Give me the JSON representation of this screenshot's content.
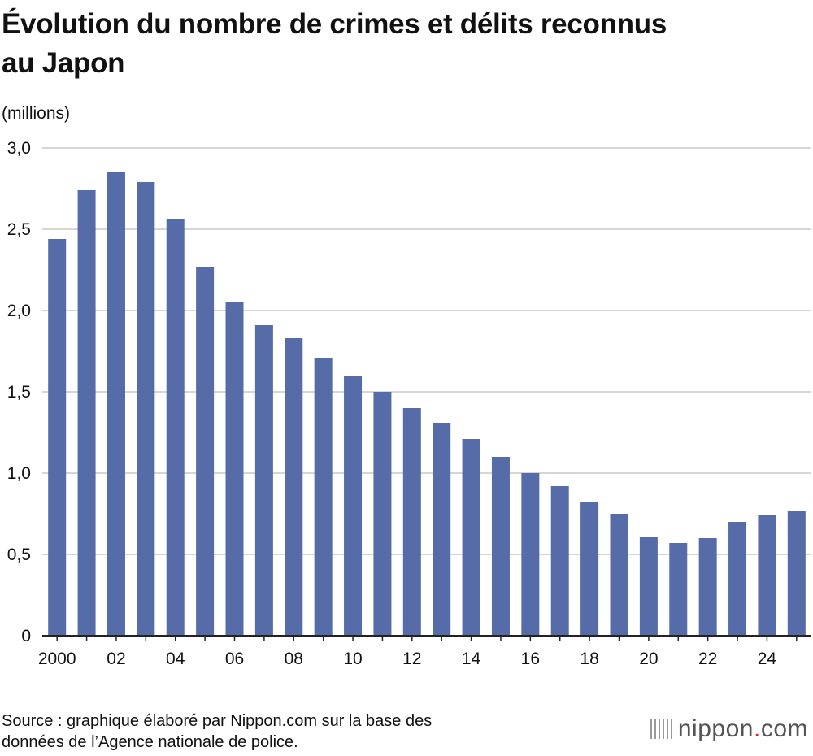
{
  "title_lines": [
    "Évolution du nombre de crimes et délits reconnus",
    "au Japon"
  ],
  "unit_label": "(millions)",
  "source_lines": [
    "Source : graphique élaboré par Nippon.com sur la base des",
    "données de l’Agence nationale de police."
  ],
  "logo": {
    "name": "nippon",
    "dot": ".",
    "suffix": "com"
  },
  "colors": {
    "bar": "#566ca8",
    "grid": "#c8c8c8",
    "axis": "#222222"
  },
  "chart_data": {
    "type": "bar",
    "title": "Évolution du nombre de crimes et délits reconnus au Japon",
    "ylabel": "(millions)",
    "xlabel": "",
    "categories": [
      "2000",
      "2001",
      "2002",
      "2003",
      "2004",
      "2005",
      "2006",
      "2007",
      "2008",
      "2009",
      "2010",
      "2011",
      "2012",
      "2013",
      "2014",
      "2015",
      "2016",
      "2017",
      "2018",
      "2019",
      "2020",
      "2021",
      "2022",
      "2023",
      "2024",
      "2025"
    ],
    "values": [
      2.44,
      2.74,
      2.85,
      2.79,
      2.56,
      2.27,
      2.05,
      1.91,
      1.83,
      1.71,
      1.6,
      1.5,
      1.4,
      1.31,
      1.21,
      1.1,
      1.0,
      0.92,
      0.82,
      0.75,
      0.61,
      0.57,
      0.6,
      0.7,
      0.74,
      0.77
    ],
    "x_tick_labels": [
      "2000",
      "02",
      "04",
      "06",
      "08",
      "10",
      "12",
      "14",
      "16",
      "18",
      "20",
      "22",
      "24"
    ],
    "y_ticks": [
      "0",
      "0,5",
      "1,0",
      "1,5",
      "2,0",
      "2,5",
      "3,0"
    ],
    "y_tick_values": [
      0,
      0.5,
      1.0,
      1.5,
      2.0,
      2.5,
      3.0
    ],
    "ylim": [
      0,
      3.0
    ],
    "grid": true
  }
}
